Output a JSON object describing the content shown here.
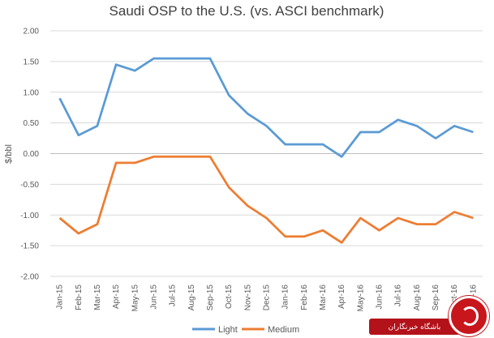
{
  "chart_data": {
    "type": "line",
    "title": "Saudi OSP to the U.S. (vs. ASCI benchmark)",
    "xlabel": "",
    "ylabel": "$/bbl",
    "ylim": [
      -2.0,
      2.0
    ],
    "ytick_labels": [
      "2.00",
      "1.50",
      "1.00",
      "0.50",
      "0.00",
      "-0.50",
      "-1.00",
      "-1.50",
      "-2.00"
    ],
    "ytick_values": [
      2.0,
      1.5,
      1.0,
      0.5,
      0.0,
      -0.5,
      -1.0,
      -1.5,
      -2.0
    ],
    "grid": true,
    "legend_position": "bottom",
    "categories": [
      "Jan-15",
      "Feb-15",
      "Mar-15",
      "Apr-15",
      "May-15",
      "Jun-15",
      "Jul-15",
      "Aug-15",
      "Sep-15",
      "Oct-15",
      "Nov-15",
      "Dec-15",
      "Jan-16",
      "Feb-16",
      "Mar-16",
      "Apr-16",
      "May-16",
      "Jun-16",
      "Jul-16",
      "Aug-16",
      "Sep-16",
      "Oct-16",
      "Nov-16"
    ],
    "series": [
      {
        "name": "Light",
        "color": "#5b9bd5",
        "values": [
          0.9,
          0.3,
          0.45,
          1.45,
          1.35,
          1.55,
          1.55,
          1.55,
          1.55,
          0.95,
          0.65,
          0.45,
          0.15,
          0.15,
          0.15,
          -0.05,
          0.35,
          0.35,
          0.55,
          0.45,
          0.25,
          0.45,
          0.35
        ]
      },
      {
        "name": "Medium",
        "color": "#ed7d31",
        "values": [
          -1.05,
          -1.3,
          -1.15,
          -0.15,
          -0.15,
          -0.05,
          -0.05,
          -0.05,
          -0.05,
          -0.55,
          -0.85,
          -1.05,
          -1.35,
          -1.35,
          -1.25,
          -1.45,
          -1.05,
          -1.25,
          -1.05,
          -1.15,
          -1.15,
          -0.95,
          -1.05
        ]
      }
    ]
  },
  "watermark": {
    "text": "باشگاه خبرنگاران",
    "color": "#c8161d"
  }
}
